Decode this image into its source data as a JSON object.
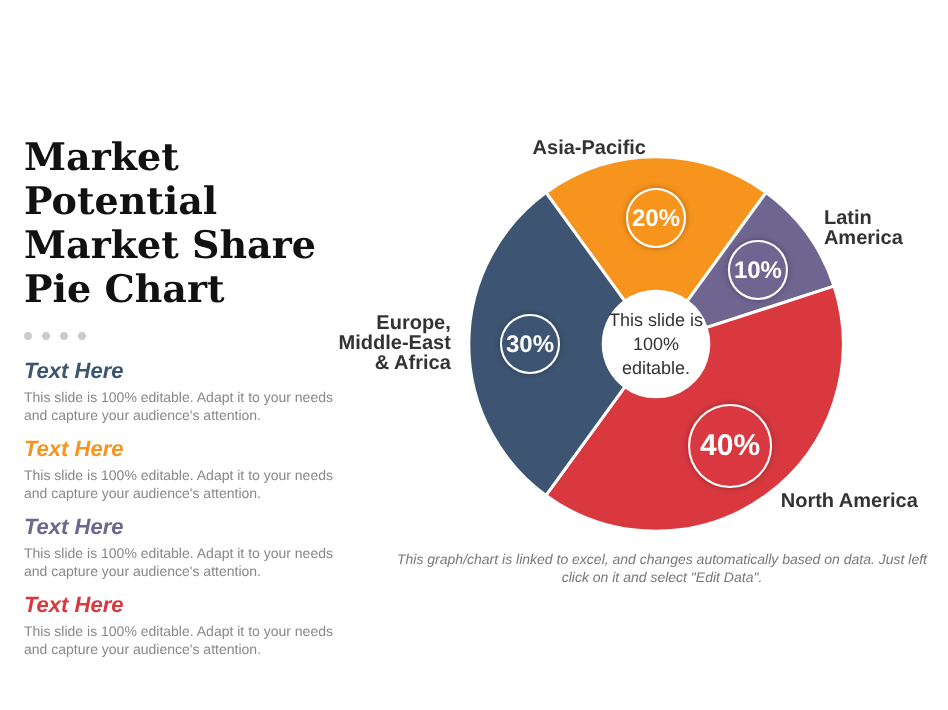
{
  "chart_data": {
    "type": "donut",
    "title": "Market Potential Market Share Pie Chart",
    "categories": [
      "Asia-Pacific",
      "Latin America",
      "North America",
      "Europe, Middle-East & Africa"
    ],
    "values": [
      20,
      10,
      40,
      30
    ],
    "value_labels": [
      "20%",
      "10%",
      "40%",
      "30%"
    ],
    "colors": [
      "#f7941d",
      "#6e6590",
      "#d9383f",
      "#3d5572"
    ],
    "legend": false,
    "annotations": [
      "This slide is 100% editable.",
      "This graph/chart is linked to excel, and changes automatically based on data. Just left click on it and select \"Edit Data\".",
      "Text Here",
      "This slide is 100% editable. Adapt it to your needs and capture your audience's attention.",
      "Text Here",
      "This slide is 100% editable. Adapt it to your needs and capture your audience's attention.",
      "Text Here",
      "This slide is 100% editable. Adapt it to your needs and capture your audience's attention.",
      "Text Here",
      "This slide is 100% editable. Adapt it to your needs and capture your audience's attention."
    ]
  }
}
